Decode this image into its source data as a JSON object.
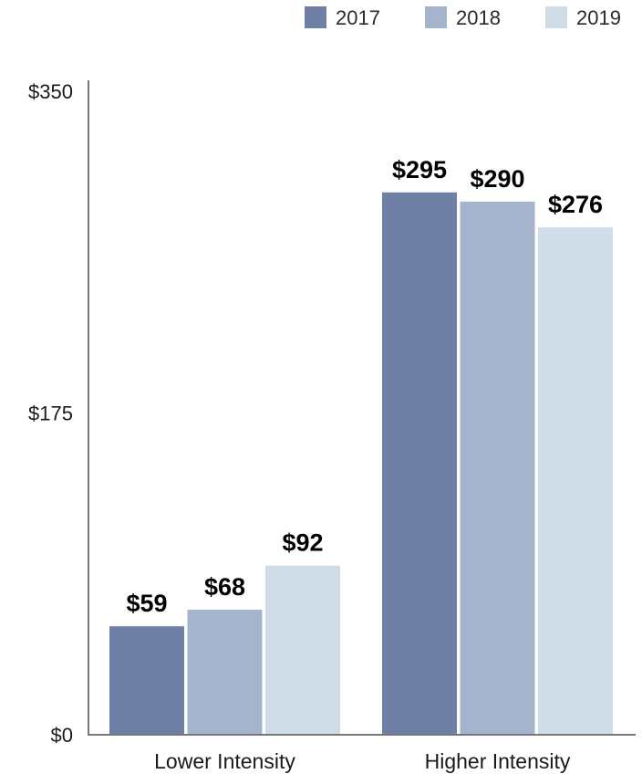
{
  "chart_data": {
    "type": "bar",
    "categories": [
      "Lower Intensity",
      "Higher Intensity"
    ],
    "series": [
      {
        "name": "2017",
        "values": [
          59,
          295
        ],
        "labels": [
          "$59",
          "$295"
        ],
        "color": "#6e80a6"
      },
      {
        "name": "2018",
        "values": [
          68,
          290
        ],
        "labels": [
          "$68",
          "$290"
        ],
        "color": "#a3b4cc"
      },
      {
        "name": "2019",
        "values": [
          92,
          276
        ],
        "labels": [
          "$92",
          "$276"
        ],
        "color": "#d0dde8"
      }
    ],
    "yticks": [
      0,
      175,
      350
    ],
    "ytick_labels": [
      "$0",
      "$175",
      "$350"
    ],
    "ylim": [
      0,
      350
    ],
    "legend_position": "top-right",
    "grid": false
  }
}
